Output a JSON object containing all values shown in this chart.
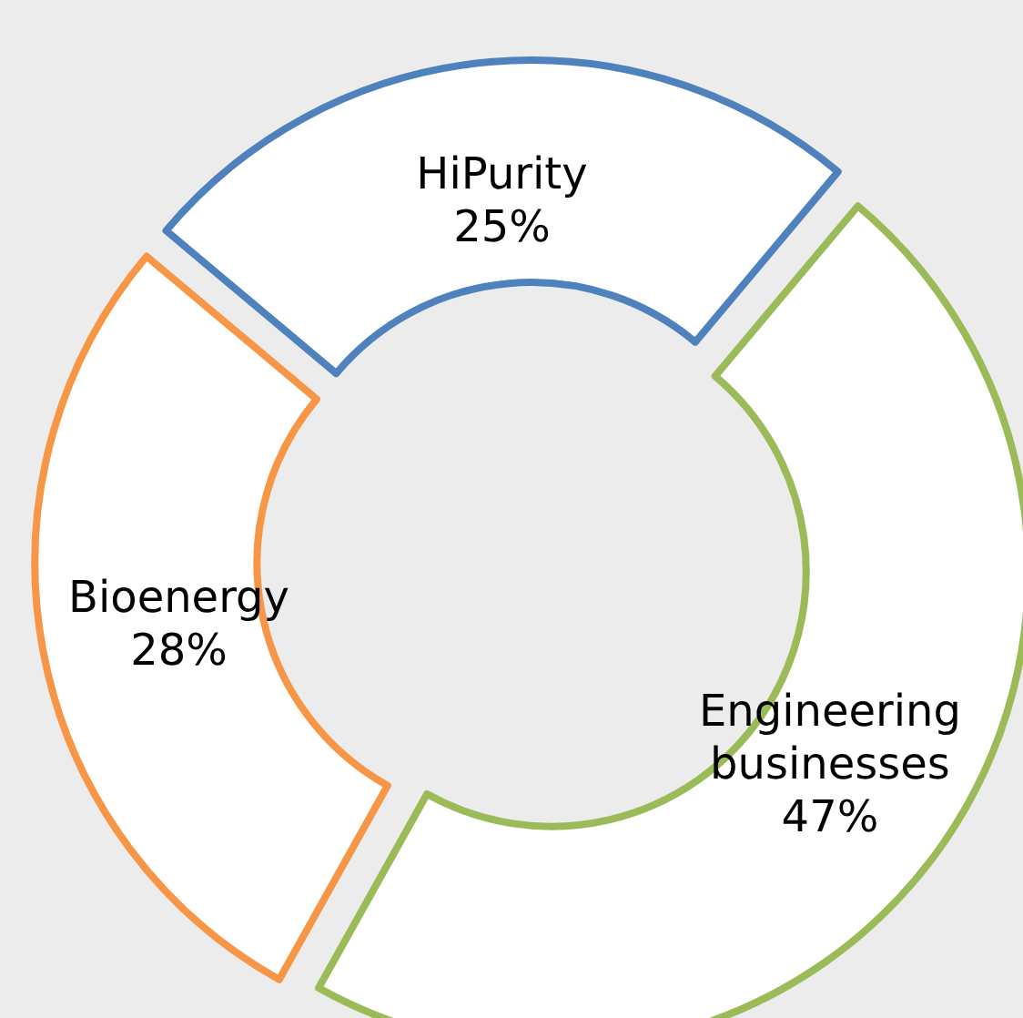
{
  "chart_data": {
    "type": "donut",
    "categories": [
      "HiPurity",
      "Bioenergy",
      "Engineering businesses"
    ],
    "values": [
      25,
      28,
      47
    ],
    "value_labels": [
      "25%",
      "28%",
      "47%"
    ],
    "colors": [
      "#4f81bd",
      "#f79646",
      "#9bbb59"
    ]
  }
}
